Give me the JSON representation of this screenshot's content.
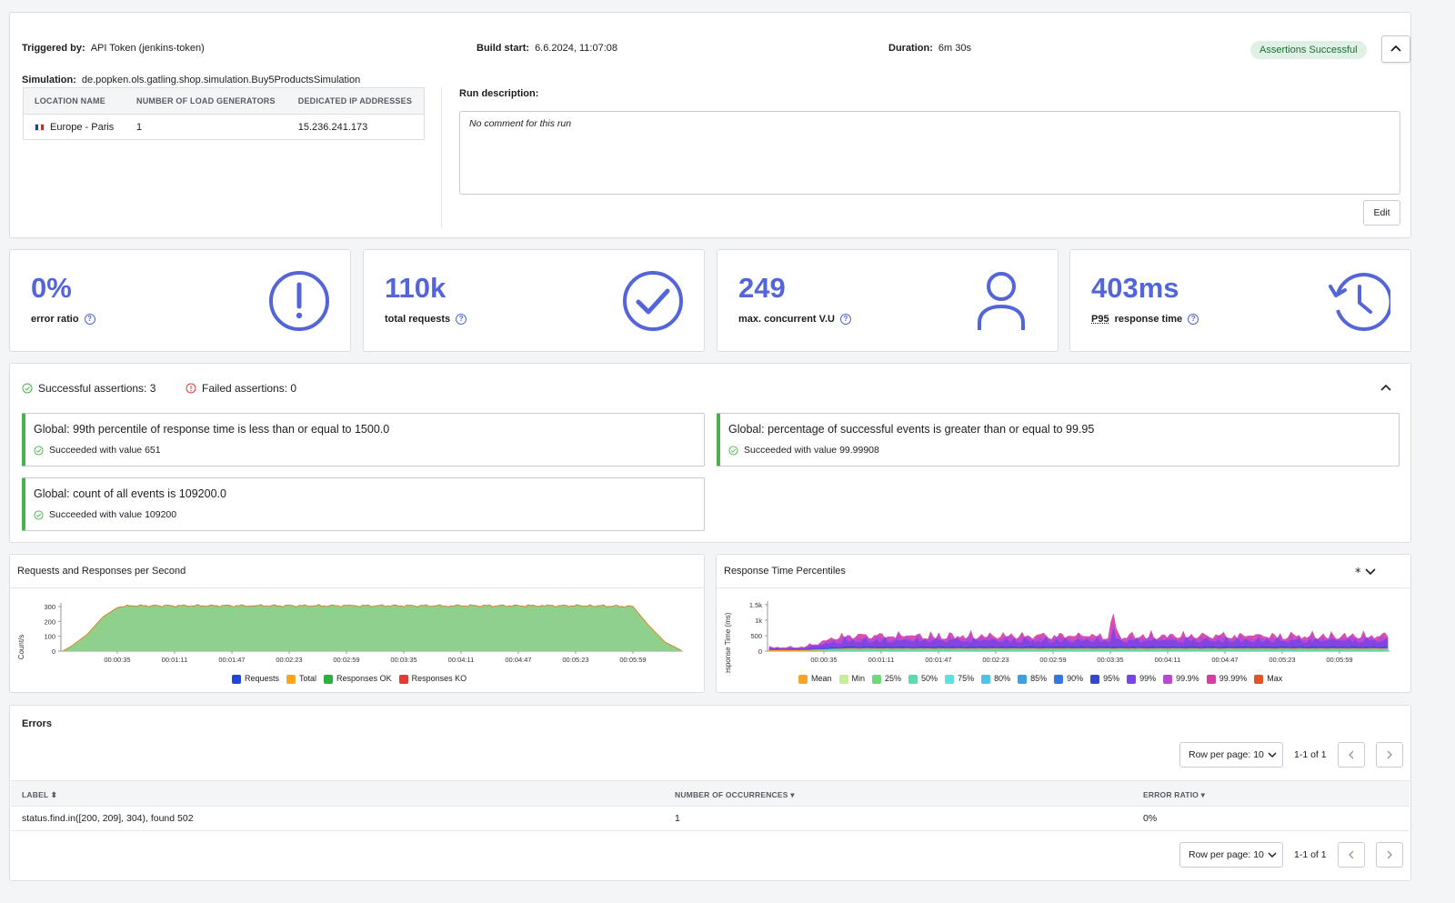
{
  "run": {
    "triggered_by_label": "Triggered by:",
    "triggered_by": "API Token (jenkins-token)",
    "build_start_label": "Build start:",
    "build_start": "6.6.2024, 11:07:08",
    "duration_label": "Duration:",
    "duration": "6m 30s",
    "status_badge": "Assertions Successful",
    "simulation_label": "Simulation:",
    "simulation": "de.popken.ols.gatling.shop.simulation.Buy5ProductsSimulation",
    "locations": {
      "headers": [
        "LOCATION NAME",
        "NUMBER OF LOAD GENERATORS",
        "DEDICATED IP ADDRESSES"
      ],
      "rows": [
        {
          "name": "Europe - Paris",
          "generators": "1",
          "ip": "15.236.241.173"
        }
      ]
    },
    "description_label": "Run description:",
    "description": "No comment for this run",
    "edit_label": "Edit"
  },
  "kpis": [
    {
      "value": "0%",
      "label": "error ratio",
      "icon": "exclamation-circle-icon"
    },
    {
      "value": "110k",
      "label": "total requests",
      "icon": "check-circle-icon"
    },
    {
      "value": "249",
      "label": "max. concurrent V.U",
      "icon": "user-icon"
    },
    {
      "value": "403ms",
      "label_prefix": "P95",
      "label": "response time",
      "icon": "history-clock-icon"
    }
  ],
  "assertions": {
    "successful": "Successful assertions: 3",
    "failed": "Failed assertions: 0",
    "items": [
      {
        "title": "Global: 99th percentile of response time is less than or equal to 1500.0",
        "result": "Succeeded with value 651"
      },
      {
        "title": "Global: percentage of successful events is greater than or equal to 99.95",
        "result": "Succeeded with value 99.99908"
      },
      {
        "title": "Global: count of all events is 109200.0",
        "result": "Succeeded with value 109200"
      }
    ]
  },
  "chart_data": [
    {
      "type": "area",
      "title": "Requests and Responses per Second",
      "ylabel": "Count/s",
      "ylim": [
        0,
        300
      ],
      "yticks": [
        "300",
        "200",
        "100",
        "0"
      ],
      "xticks": [
        "00:00:35",
        "00:01:11",
        "00:01:47",
        "00:02:23",
        "00:02:59",
        "00:03:35",
        "00:04:11",
        "00:04:47",
        "00:05:23",
        "00:05:59"
      ],
      "x_seconds": [
        0,
        5,
        15,
        25,
        35,
        45,
        60,
        120,
        180,
        240,
        300,
        330,
        355,
        365,
        375,
        385
      ],
      "series": [
        {
          "name": "Requests",
          "color": "#2245d8"
        },
        {
          "name": "Total",
          "color": "#f5a623"
        },
        {
          "name": "Responses OK",
          "color": "#2ab03d"
        },
        {
          "name": "Responses KO",
          "color": "#e53935"
        }
      ],
      "values": [
        0,
        30,
        110,
        230,
        300,
        305,
        305,
        305,
        305,
        305,
        305,
        305,
        300,
        170,
        60,
        5
      ]
    },
    {
      "type": "area",
      "title": "Response Time Percentiles",
      "ylabel": "Response Time (ms)",
      "ylim": [
        0,
        1500
      ],
      "yticks": [
        "1.5k",
        "1k",
        "500",
        "0"
      ],
      "xticks": [
        "00:00:35",
        "00:01:11",
        "00:01:47",
        "00:02:23",
        "00:02:59",
        "00:03:35",
        "00:04:11",
        "00:04:47",
        "00:05:23",
        "00:05:59"
      ],
      "series": [
        {
          "name": "Mean",
          "color": "#f5a623"
        },
        {
          "name": "Min",
          "color": "#c6ed9c"
        },
        {
          "name": "25%",
          "color": "#6fd87f"
        },
        {
          "name": "50%",
          "color": "#5ddab0"
        },
        {
          "name": "75%",
          "color": "#5ee0e0"
        },
        {
          "name": "80%",
          "color": "#4cc3e8"
        },
        {
          "name": "85%",
          "color": "#3f9fe0"
        },
        {
          "name": "90%",
          "color": "#3577dc"
        },
        {
          "name": "95%",
          "color": "#3547cc"
        },
        {
          "name": "99%",
          "color": "#7b45e6"
        },
        {
          "name": "99.9%",
          "color": "#b948d6"
        },
        {
          "name": "99.99%",
          "color": "#d43fa3"
        },
        {
          "name": "Max",
          "color": "#e2542a"
        }
      ],
      "peak_ms": 1350,
      "typical_p99_ms": 650
    }
  ],
  "errors": {
    "title": "Errors",
    "rows_per_page": "Row per page: 10",
    "range": "1-1 of 1",
    "headers": [
      "LABEL",
      "NUMBER OF OCCURRENCES",
      "ERROR RATIO"
    ],
    "rows": [
      {
        "label": "status.find.in([200, 209], 304), found 502",
        "count": "1",
        "ratio": "0%"
      }
    ]
  },
  "colors": {
    "accent": "#5465d9",
    "success": "#4caf50",
    "danger": "#e53935"
  }
}
